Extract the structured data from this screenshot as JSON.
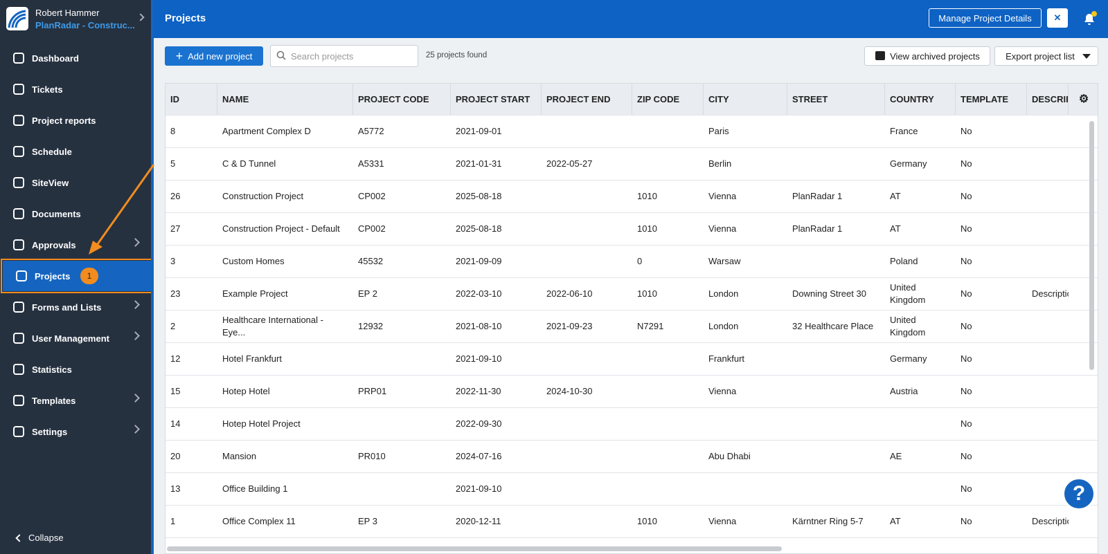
{
  "sidebar": {
    "user": "Robert Hammer",
    "company": "PlanRadar - Construc...",
    "nav": [
      {
        "label": "Dashboard",
        "submenu": false
      },
      {
        "label": "Tickets",
        "submenu": false
      },
      {
        "label": "Project reports",
        "submenu": false
      },
      {
        "label": "Schedule",
        "submenu": false
      },
      {
        "label": "SiteView",
        "submenu": false
      },
      {
        "label": "Documents",
        "submenu": false
      },
      {
        "label": "Approvals",
        "submenu": true
      },
      {
        "label": "Projects",
        "submenu": false,
        "active": true,
        "badge": "1"
      },
      {
        "label": "Forms and Lists",
        "submenu": true
      },
      {
        "label": "User Management",
        "submenu": true
      },
      {
        "label": "Statistics",
        "submenu": false
      },
      {
        "label": "Templates",
        "submenu": true
      },
      {
        "label": "Settings",
        "submenu": true
      }
    ],
    "collapse": "Collapse"
  },
  "header": {
    "title": "Projects",
    "button": "Manage Project Details"
  },
  "toolbar": {
    "add": "Add new project",
    "search_placeholder": "Search projects",
    "count": "25 projects found",
    "archived": "View archived projects",
    "export": "Export project list"
  },
  "table": {
    "columns": [
      "ID",
      "NAME",
      "PROJECT CODE",
      "PROJECT START",
      "PROJECT END",
      "ZIP CODE",
      "CITY",
      "STREET",
      "COUNTRY",
      "TEMPLATE",
      "DESCRIPTION"
    ],
    "rows": [
      [
        "8",
        "Apartment Complex D",
        "A5772",
        "2021-09-01",
        null,
        null,
        "Paris",
        null,
        "France",
        "No",
        null
      ],
      [
        "5",
        "C & D Tunnel",
        "A5331",
        "2021-01-31",
        "2022-05-27",
        null,
        "Berlin",
        null,
        "Germany",
        "No",
        null
      ],
      [
        "26",
        "Construction Project",
        "CP002",
        "2025-08-18",
        null,
        "1010",
        "Vienna",
        "PlanRadar 1",
        "AT",
        "No",
        null
      ],
      [
        "27",
        "Construction Project - Default",
        "CP002",
        "2025-08-18",
        null,
        "1010",
        "Vienna",
        "PlanRadar 1",
        "AT",
        "No",
        null
      ],
      [
        "3",
        "Custom Homes",
        "45532",
        "2021-09-09",
        null,
        "0",
        "Warsaw",
        null,
        "Poland",
        "No",
        null
      ],
      [
        "23",
        "Example Project",
        "EP 2",
        "2022-03-10",
        "2022-06-10",
        "1010",
        "London",
        "Downing Street 30",
        "United Kingdom",
        "No",
        "Description"
      ],
      [
        "2",
        "Healthcare International - Eye...",
        "12932",
        "2021-08-10",
        "2021-09-23",
        "N7291",
        "London",
        "32 Healthcare Place",
        "United Kingdom",
        "No",
        null
      ],
      [
        "12",
        "Hotel Frankfurt",
        null,
        "2021-09-10",
        null,
        null,
        "Frankfurt",
        null,
        "Germany",
        "No",
        null
      ],
      [
        "15",
        "Hotep Hotel",
        "PRP01",
        "2022-11-30",
        "2024-10-30",
        null,
        "Vienna",
        null,
        "Austria",
        "No",
        null
      ],
      [
        "14",
        "Hotep Hotel Project",
        null,
        "2022-09-30",
        null,
        null,
        null,
        null,
        null,
        "No",
        null
      ],
      [
        "20",
        "Mansion",
        "PR010",
        "2024-07-16",
        null,
        null,
        "Abu Dhabi",
        null,
        "AE",
        "No",
        null
      ],
      [
        "13",
        "Office Building 1",
        null,
        "2021-09-10",
        null,
        null,
        null,
        null,
        null,
        "No",
        null
      ],
      [
        "1",
        "Office Complex 11",
        "EP 3",
        "2020-12-11",
        null,
        "1010",
        "Vienna",
        "Kärntner Ring 5-7",
        "AT",
        "No",
        "Description"
      ]
    ]
  },
  "help": "?"
}
